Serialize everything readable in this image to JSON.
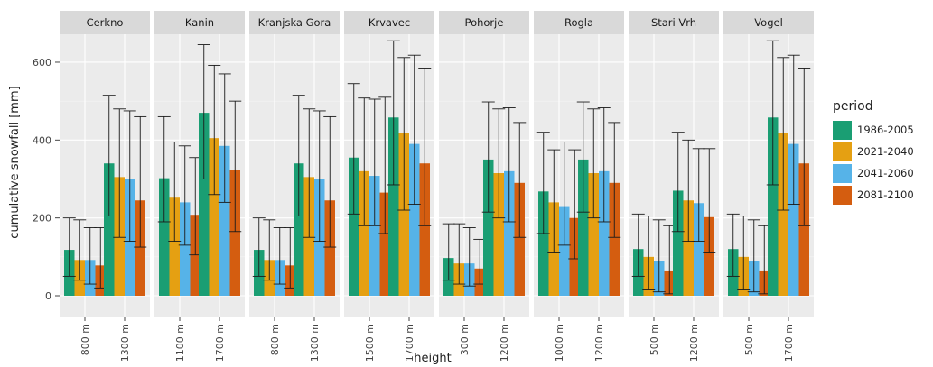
{
  "chart_data": {
    "type": "bar",
    "xlabel": "height",
    "ylabel": "cumulative snowfall [mm]",
    "ylim": [
      0,
      700
    ],
    "yticks": [
      0,
      200,
      400,
      600
    ],
    "legend_title": "period",
    "legend_position": "right",
    "grid": true,
    "series": [
      {
        "name": "1986-2005",
        "color": "#1a9e73"
      },
      {
        "name": "2021-2040",
        "color": "#e5a012"
      },
      {
        "name": "2041-2060",
        "color": "#56b3e8"
      },
      {
        "name": "2081-2100",
        "color": "#d45d10"
      }
    ],
    "panels": [
      {
        "title": "Cerkno",
        "groups": [
          {
            "label": "800 m",
            "values": [
              118,
              92,
              92,
              78
            ],
            "lower": [
              50,
              40,
              30,
              20
            ],
            "upper": [
              200,
              195,
              175,
              175
            ]
          },
          {
            "label": "1300 m",
            "values": [
              340,
              305,
              300,
              245
            ],
            "lower": [
              205,
              150,
              140,
              125
            ],
            "upper": [
              515,
              480,
              475,
              460
            ]
          }
        ]
      },
      {
        "title": "Kanin",
        "groups": [
          {
            "label": "1100 m",
            "values": [
              302,
              252,
              240,
              208
            ],
            "lower": [
              190,
              140,
              130,
              105
            ],
            "upper": [
              460,
              395,
              385,
              355
            ]
          },
          {
            "label": "1700 m",
            "values": [
              470,
              405,
              385,
              322
            ],
            "lower": [
              300,
              260,
              240,
              165
            ],
            "upper": [
              645,
              592,
              570,
              500
            ]
          }
        ]
      },
      {
        "title": "Kranjska Gora",
        "groups": [
          {
            "label": "800 m",
            "values": [
              118,
              92,
              92,
              78
            ],
            "lower": [
              50,
              40,
              30,
              20
            ],
            "upper": [
              200,
              195,
              175,
              175
            ]
          },
          {
            "label": "1300 m",
            "values": [
              340,
              305,
              300,
              245
            ],
            "lower": [
              205,
              150,
              140,
              125
            ],
            "upper": [
              515,
              480,
              475,
              460
            ]
          }
        ]
      },
      {
        "title": "Krvavec",
        "groups": [
          {
            "label": "1500 m",
            "values": [
              355,
              320,
              308,
              265
            ],
            "lower": [
              210,
              180,
              180,
              160
            ],
            "upper": [
              545,
              508,
              505,
              510
            ]
          },
          {
            "label": "1700 m",
            "values": [
              458,
              418,
              390,
              340
            ],
            "lower": [
              285,
              220,
              235,
              180
            ],
            "upper": [
              655,
              612,
              618,
              585
            ]
          }
        ]
      },
      {
        "title": "Pohorje",
        "groups": [
          {
            "label": "300 m",
            "values": [
              97,
              83,
              83,
              70
            ],
            "lower": [
              40,
              30,
              25,
              30
            ],
            "upper": [
              185,
              185,
              175,
              145
            ]
          },
          {
            "label": "1200 m",
            "values": [
              350,
              315,
              320,
              290
            ],
            "lower": [
              215,
              200,
              190,
              150
            ],
            "upper": [
              498,
              480,
              483,
              445
            ]
          }
        ]
      },
      {
        "title": "Rogla",
        "groups": [
          {
            "label": "1000 m",
            "values": [
              268,
              240,
              228,
              200
            ],
            "lower": [
              160,
              110,
              130,
              95
            ],
            "upper": [
              420,
              375,
              395,
              375
            ]
          },
          {
            "label": "1200 m",
            "values": [
              350,
              315,
              320,
              290
            ],
            "lower": [
              215,
              200,
              190,
              150
            ],
            "upper": [
              498,
              480,
              483,
              445
            ]
          }
        ]
      },
      {
        "title": "Stari Vrh",
        "groups": [
          {
            "label": "500 m",
            "values": [
              120,
              100,
              90,
              65
            ],
            "lower": [
              50,
              15,
              10,
              5
            ],
            "upper": [
              210,
              205,
              195,
              180
            ]
          },
          {
            "label": "1200 m",
            "values": [
              270,
              245,
              238,
              202
            ],
            "lower": [
              165,
              140,
              140,
              110
            ],
            "upper": [
              420,
              400,
              378,
              378
            ]
          }
        ]
      },
      {
        "title": "Vogel",
        "groups": [
          {
            "label": "500 m",
            "values": [
              120,
              100,
              90,
              65
            ],
            "lower": [
              50,
              15,
              10,
              5
            ],
            "upper": [
              210,
              205,
              195,
              180
            ]
          },
          {
            "label": "1700 m",
            "values": [
              458,
              418,
              390,
              340
            ],
            "lower": [
              285,
              220,
              235,
              180
            ],
            "upper": [
              655,
              612,
              618,
              585
            ]
          }
        ]
      }
    ]
  }
}
